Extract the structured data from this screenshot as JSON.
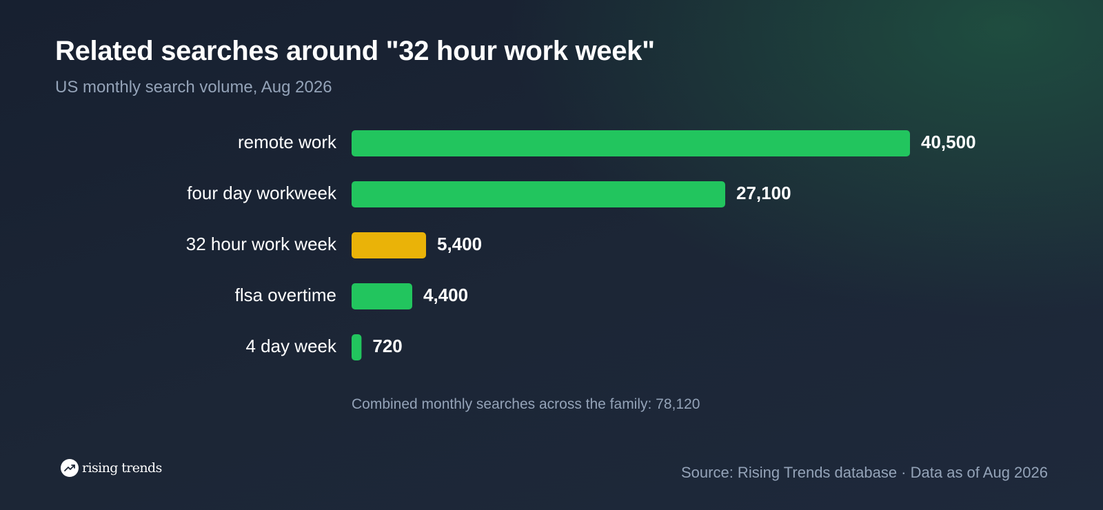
{
  "chart_data": {
    "type": "bar",
    "orientation": "horizontal",
    "title": "Related searches around \"32 hour work week\"",
    "subtitle": "US monthly search volume, Aug 2026",
    "categories": [
      "remote work",
      "four day workweek",
      "32 hour work week",
      "flsa overtime",
      "4 day week"
    ],
    "values": [
      40500,
      27100,
      5400,
      4400,
      720
    ],
    "value_labels": [
      "40,500",
      "27,100",
      "5,400",
      "4,400",
      "720"
    ],
    "highlight": "32 hour work week",
    "colors": {
      "bar": "#22c55e",
      "highlight": "#eab308"
    },
    "xlim": [
      0,
      40500
    ],
    "grid": false,
    "legend": "none"
  },
  "note": "Combined monthly searches across the family: 78,120",
  "brand": {
    "name": "rising trends",
    "icon": "trend-up-icon"
  },
  "source": "Source: Rising Trends database · Data as of Aug 2026"
}
